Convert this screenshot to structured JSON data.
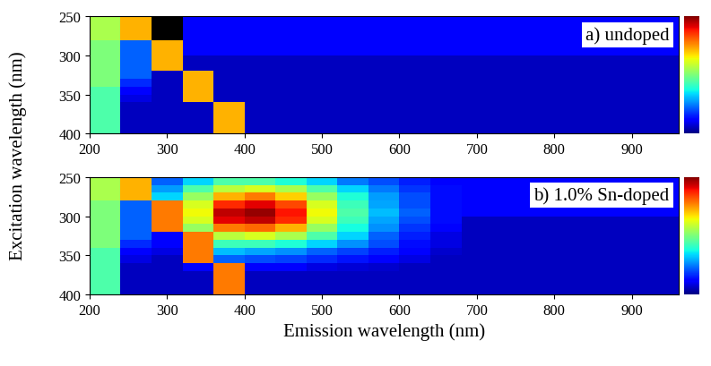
{
  "chart_data": [
    {
      "type": "heatmap",
      "annotation": "a) undoped",
      "y_label": "Excitation wavelength (nm)",
      "x_edges": [
        200,
        240,
        280,
        320,
        360,
        400,
        440,
        480,
        520,
        560,
        600,
        640,
        680,
        720,
        760,
        800,
        840,
        880,
        920,
        960
      ],
      "y_edges": [
        250,
        260,
        270,
        280,
        290,
        300,
        310,
        320,
        330,
        340,
        350,
        360,
        370,
        380,
        390,
        400
      ],
      "cells": [
        [
          60,
          75,
          0,
          20,
          20,
          20,
          20,
          20,
          20,
          20,
          20,
          20,
          20,
          20,
          20,
          20,
          20,
          20,
          20
        ],
        [
          60,
          75,
          0,
          20,
          20,
          20,
          20,
          20,
          20,
          20,
          20,
          20,
          20,
          20,
          20,
          20,
          20,
          20,
          20
        ],
        [
          60,
          75,
          0,
          20,
          20,
          20,
          20,
          20,
          20,
          20,
          20,
          20,
          20,
          20,
          20,
          20,
          20,
          20,
          20
        ],
        [
          55,
          30,
          75,
          20,
          20,
          20,
          20,
          20,
          20,
          20,
          20,
          20,
          20,
          20,
          20,
          20,
          20,
          20,
          20
        ],
        [
          55,
          30,
          75,
          20,
          20,
          20,
          20,
          20,
          20,
          20,
          20,
          20,
          20,
          20,
          20,
          20,
          20,
          20,
          20
        ],
        [
          55,
          30,
          75,
          15,
          15,
          15,
          15,
          15,
          15,
          15,
          15,
          15,
          15,
          15,
          15,
          15,
          15,
          15,
          15
        ],
        [
          55,
          30,
          75,
          15,
          15,
          15,
          15,
          15,
          15,
          15,
          15,
          15,
          15,
          15,
          15,
          15,
          15,
          15,
          15
        ],
        [
          55,
          30,
          15,
          75,
          15,
          15,
          15,
          15,
          15,
          15,
          15,
          15,
          15,
          15,
          15,
          15,
          15,
          15,
          15
        ],
        [
          55,
          25,
          15,
          75,
          15,
          15,
          15,
          15,
          15,
          15,
          15,
          15,
          15,
          15,
          15,
          15,
          15,
          15,
          15
        ],
        [
          50,
          20,
          15,
          75,
          15,
          15,
          15,
          15,
          15,
          15,
          15,
          15,
          15,
          15,
          15,
          15,
          15,
          15,
          15
        ],
        [
          50,
          18,
          15,
          75,
          15,
          15,
          15,
          15,
          15,
          15,
          15,
          15,
          15,
          15,
          15,
          15,
          15,
          15,
          15
        ],
        [
          50,
          15,
          15,
          15,
          75,
          15,
          15,
          15,
          15,
          15,
          15,
          15,
          15,
          15,
          15,
          15,
          15,
          15,
          15
        ],
        [
          50,
          15,
          15,
          15,
          75,
          15,
          15,
          15,
          15,
          15,
          15,
          15,
          15,
          15,
          15,
          15,
          15,
          15,
          15
        ],
        [
          50,
          15,
          15,
          15,
          75,
          15,
          15,
          15,
          15,
          15,
          15,
          15,
          15,
          15,
          15,
          15,
          15,
          15,
          15
        ],
        [
          50,
          15,
          15,
          15,
          75,
          15,
          15,
          15,
          15,
          15,
          15,
          15,
          15,
          15,
          15,
          15,
          15,
          15,
          15
        ]
      ],
      "colorbar_range": [
        10,
        100
      ],
      "colorbar_ticks": [],
      "xlim": [
        200,
        960
      ],
      "xticks": [
        200,
        300,
        400,
        500,
        600,
        700,
        800,
        900
      ],
      "ylim": [
        400,
        250
      ],
      "yticks": [
        250,
        300,
        350,
        400
      ]
    },
    {
      "type": "heatmap",
      "annotation": "b) 1.0% Sn-doped",
      "x_label": "Emission wavelength (nm)",
      "x_edges": [
        200,
        240,
        280,
        320,
        360,
        400,
        440,
        480,
        520,
        560,
        600,
        640,
        680,
        720,
        760,
        800,
        840,
        880,
        920,
        960
      ],
      "y_edges": [
        250,
        260,
        270,
        280,
        290,
        300,
        310,
        320,
        330,
        340,
        350,
        360,
        370,
        380,
        390,
        400
      ],
      "cells": [
        [
          60,
          75,
          30,
          40,
          50,
          50,
          45,
          40,
          32,
          28,
          24,
          20,
          20,
          20,
          20,
          20,
          20,
          20,
          20
        ],
        [
          60,
          75,
          35,
          50,
          62,
          65,
          60,
          50,
          40,
          32,
          26,
          22,
          20,
          20,
          20,
          20,
          20,
          20,
          20
        ],
        [
          60,
          75,
          40,
          58,
          75,
          80,
          72,
          58,
          45,
          35,
          28,
          22,
          20,
          20,
          20,
          20,
          20,
          20,
          20
        ],
        [
          55,
          30,
          80,
          65,
          88,
          92,
          85,
          65,
          48,
          36,
          28,
          22,
          20,
          20,
          20,
          20,
          20,
          20,
          20
        ],
        [
          55,
          30,
          80,
          68,
          95,
          98,
          90,
          68,
          50,
          38,
          30,
          22,
          20,
          20,
          20,
          20,
          20,
          20,
          20
        ],
        [
          55,
          30,
          80,
          65,
          92,
          95,
          88,
          65,
          48,
          36,
          28,
          22,
          15,
          15,
          15,
          15,
          15,
          15,
          15
        ],
        [
          55,
          30,
          80,
          58,
          80,
          82,
          75,
          58,
          44,
          34,
          26,
          20,
          15,
          15,
          15,
          15,
          15,
          15,
          15
        ],
        [
          55,
          30,
          20,
          80,
          62,
          65,
          60,
          50,
          40,
          30,
          24,
          18,
          15,
          15,
          15,
          15,
          15,
          15,
          15
        ],
        [
          55,
          25,
          20,
          80,
          48,
          48,
          45,
          40,
          34,
          28,
          22,
          18,
          15,
          15,
          15,
          15,
          15,
          15,
          15
        ],
        [
          50,
          20,
          18,
          80,
          38,
          36,
          34,
          30,
          27,
          24,
          20,
          16,
          15,
          15,
          15,
          15,
          15,
          15,
          15
        ],
        [
          50,
          18,
          15,
          80,
          30,
          28,
          27,
          25,
          23,
          20,
          18,
          15,
          15,
          15,
          15,
          15,
          15,
          15,
          15
        ],
        [
          50,
          15,
          15,
          20,
          80,
          20,
          20,
          18,
          17,
          16,
          15,
          15,
          15,
          15,
          15,
          15,
          15,
          15,
          15
        ],
        [
          50,
          15,
          15,
          15,
          80,
          15,
          15,
          15,
          15,
          15,
          15,
          15,
          15,
          15,
          15,
          15,
          15,
          15,
          15
        ],
        [
          50,
          15,
          15,
          15,
          80,
          15,
          15,
          15,
          15,
          15,
          15,
          15,
          15,
          15,
          15,
          15,
          15,
          15,
          15
        ],
        [
          50,
          15,
          15,
          15,
          80,
          15,
          15,
          15,
          15,
          15,
          15,
          15,
          15,
          15,
          15,
          15,
          15,
          15,
          15
        ]
      ],
      "colorbar_range": [
        10,
        100
      ],
      "colorbar_ticks": [],
      "xlim": [
        200,
        960
      ],
      "xticks": [
        200,
        300,
        400,
        500,
        600,
        700,
        800,
        900
      ],
      "ylim": [
        400,
        250
      ],
      "yticks": [
        250,
        300,
        350,
        400
      ]
    }
  ]
}
